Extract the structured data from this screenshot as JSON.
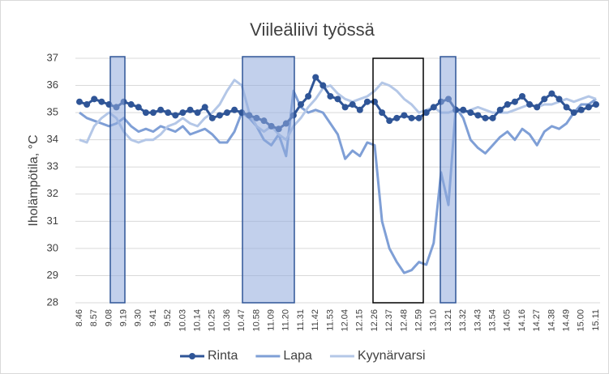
{
  "chart_data": {
    "type": "line",
    "title": "Viileäliivi työssä",
    "y_label": "Iholämpötila, °C",
    "categories": [
      "8.46",
      null,
      "8.57",
      null,
      "9.08",
      null,
      "9.19",
      null,
      "9.30",
      null,
      "9.41",
      null,
      "9.52",
      null,
      "10.03",
      null,
      "10.14",
      null,
      "10.25",
      null,
      "10.36",
      null,
      "10.47",
      null,
      "10.58",
      null,
      "11.09",
      null,
      "11.20",
      null,
      "11.31",
      null,
      "11.42",
      null,
      "11.53",
      null,
      "12.04",
      null,
      "12.15",
      null,
      "12.26",
      null,
      "12.37",
      null,
      "12.48",
      null,
      "12.59",
      null,
      "13.10",
      null,
      "13.21",
      null,
      "13.32",
      null,
      "13.43",
      null,
      "13.54",
      null,
      "14.05",
      null,
      "14.16",
      null,
      "14.27",
      null,
      "14.38",
      null,
      "14.49",
      null,
      "15.00",
      null,
      "15.11"
    ],
    "series": [
      {
        "name": "Rinta",
        "color": "#2f5597",
        "markers": true,
        "values": [
          35.4,
          35.3,
          35.5,
          35.4,
          35.3,
          35.2,
          35.4,
          35.3,
          35.2,
          35.0,
          35.0,
          35.1,
          35.0,
          34.9,
          35.0,
          35.1,
          35.0,
          35.2,
          34.8,
          34.9,
          35.0,
          35.1,
          35.0,
          34.9,
          34.8,
          34.7,
          34.5,
          34.4,
          34.6,
          34.9,
          35.3,
          35.6,
          36.3,
          36.0,
          35.6,
          35.5,
          35.2,
          35.3,
          35.1,
          35.4,
          35.4,
          35.0,
          34.7,
          34.8,
          34.9,
          34.8,
          34.8,
          35.0,
          35.2,
          35.4,
          35.5,
          35.1,
          35.1,
          35.0,
          34.9,
          34.8,
          34.8,
          35.1,
          35.3,
          35.4,
          35.6,
          35.3,
          35.2,
          35.5,
          35.7,
          35.5,
          35.2,
          35.0,
          35.1,
          35.2,
          35.3
        ]
      },
      {
        "name": "Lapa",
        "color": "#7f9fd6",
        "markers": false,
        "values": [
          35.0,
          34.8,
          34.7,
          34.6,
          34.5,
          34.6,
          34.8,
          34.5,
          34.3,
          34.4,
          34.3,
          34.5,
          34.4,
          34.3,
          34.5,
          34.2,
          34.3,
          34.4,
          34.2,
          33.9,
          33.9,
          34.3,
          35.0,
          34.8,
          34.5,
          34.0,
          33.8,
          34.2,
          33.4,
          35.8,
          35.2,
          35.0,
          35.1,
          35.0,
          34.6,
          34.2,
          33.3,
          33.6,
          33.4,
          33.9,
          33.8,
          31.0,
          30.0,
          29.5,
          29.1,
          29.2,
          29.5,
          29.4,
          30.2,
          32.8,
          31.6,
          35.2,
          34.8,
          34.0,
          33.7,
          33.5,
          33.8,
          34.1,
          34.3,
          34.0,
          34.4,
          34.2,
          33.8,
          34.3,
          34.5,
          34.4,
          34.6,
          35.0,
          35.3,
          35.3,
          35.5
        ]
      },
      {
        "name": "Kyynärvarsi",
        "color": "#b4c7e7",
        "markers": false,
        "values": [
          34.0,
          33.9,
          34.5,
          34.8,
          35.0,
          34.8,
          34.3,
          34.0,
          33.9,
          34.0,
          34.0,
          34.2,
          34.5,
          34.6,
          34.8,
          34.6,
          34.5,
          34.8,
          35.0,
          35.3,
          35.8,
          36.2,
          36.0,
          35.0,
          34.5,
          34.3,
          34.5,
          34.2,
          34.0,
          34.5,
          34.8,
          35.2,
          35.5,
          35.9,
          36.0,
          35.7,
          35.5,
          35.4,
          35.5,
          35.6,
          35.8,
          36.1,
          36.0,
          35.8,
          35.5,
          35.3,
          35.0,
          35.1,
          35.2,
          35.0,
          35.0,
          35.1,
          35.0,
          35.1,
          35.2,
          35.1,
          35.0,
          35.0,
          35.0,
          35.1,
          35.2,
          35.3,
          35.2,
          35.3,
          35.3,
          35.4,
          35.5,
          35.4,
          35.5,
          35.6,
          35.5
        ]
      }
    ],
    "ylim": [
      28,
      37
    ],
    "yticks": [
      28,
      29,
      30,
      31,
      32,
      33,
      34,
      35,
      36,
      37
    ],
    "grid": true
  }
}
